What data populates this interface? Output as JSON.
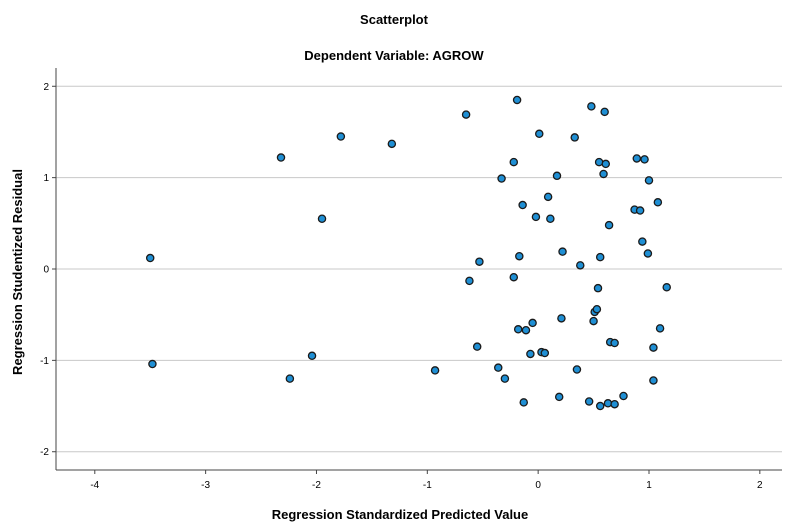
{
  "chart_data": {
    "type": "scatter",
    "title": "Scatterplot",
    "subtitle": "Dependent Variable: AGROW",
    "xlabel": "Regression Standardized Predicted Value",
    "ylabel": "Regression Studentized Residual",
    "xlim": [
      -4.35,
      2.2
    ],
    "ylim": [
      -2.2,
      2.2
    ],
    "xticks": [
      "-4",
      "-3",
      "-2",
      "-1",
      "0",
      "1",
      "2"
    ],
    "yticks": [
      "-2",
      "-1",
      "0",
      "1",
      "2"
    ],
    "grid": "horizontal",
    "marker_color": "#1f8fd4",
    "marker_edge": "#1a1a1a",
    "points": [
      [
        -3.5,
        0.12
      ],
      [
        -3.48,
        -1.04
      ],
      [
        -2.32,
        1.22
      ],
      [
        -2.24,
        -1.2
      ],
      [
        -2.04,
        -0.95
      ],
      [
        -1.95,
        0.55
      ],
      [
        -1.78,
        1.45
      ],
      [
        -1.32,
        1.37
      ],
      [
        -0.93,
        -1.11
      ],
      [
        -0.65,
        1.69
      ],
      [
        -0.62,
        -0.13
      ],
      [
        -0.55,
        -0.85
      ],
      [
        -0.53,
        0.08
      ],
      [
        -0.36,
        -1.08
      ],
      [
        -0.33,
        0.99
      ],
      [
        -0.3,
        -1.2
      ],
      [
        -0.22,
        1.17
      ],
      [
        -0.22,
        -0.09
      ],
      [
        -0.19,
        1.85
      ],
      [
        -0.18,
        -0.66
      ],
      [
        -0.17,
        0.14
      ],
      [
        -0.14,
        0.7
      ],
      [
        -0.13,
        -1.46
      ],
      [
        -0.11,
        -0.67
      ],
      [
        -0.07,
        -0.93
      ],
      [
        -0.05,
        -0.59
      ],
      [
        -0.02,
        0.57
      ],
      [
        0.01,
        1.48
      ],
      [
        0.03,
        -0.91
      ],
      [
        0.06,
        -0.92
      ],
      [
        0.09,
        0.79
      ],
      [
        0.11,
        0.55
      ],
      [
        0.17,
        1.02
      ],
      [
        0.19,
        -1.4
      ],
      [
        0.21,
        -0.54
      ],
      [
        0.22,
        0.19
      ],
      [
        0.33,
        1.44
      ],
      [
        0.35,
        -1.1
      ],
      [
        0.38,
        0.04
      ],
      [
        0.46,
        -1.45
      ],
      [
        0.48,
        1.78
      ],
      [
        0.5,
        -0.57
      ],
      [
        0.51,
        -0.47
      ],
      [
        0.53,
        -0.44
      ],
      [
        0.54,
        -0.21
      ],
      [
        0.55,
        1.17
      ],
      [
        0.56,
        0.13
      ],
      [
        0.56,
        -1.5
      ],
      [
        0.59,
        1.04
      ],
      [
        0.6,
        1.72
      ],
      [
        0.61,
        1.15
      ],
      [
        0.63,
        -1.47
      ],
      [
        0.64,
        0.48
      ],
      [
        0.65,
        -0.8
      ],
      [
        0.69,
        -0.81
      ],
      [
        0.69,
        -1.48
      ],
      [
        0.77,
        -1.39
      ],
      [
        0.87,
        0.65
      ],
      [
        0.89,
        1.21
      ],
      [
        0.92,
        0.64
      ],
      [
        0.94,
        0.3
      ],
      [
        0.96,
        1.2
      ],
      [
        0.99,
        0.17
      ],
      [
        1.0,
        0.97
      ],
      [
        1.04,
        -0.86
      ],
      [
        1.04,
        -1.22
      ],
      [
        1.08,
        0.73
      ],
      [
        1.1,
        -0.65
      ],
      [
        1.16,
        -0.2
      ]
    ]
  }
}
